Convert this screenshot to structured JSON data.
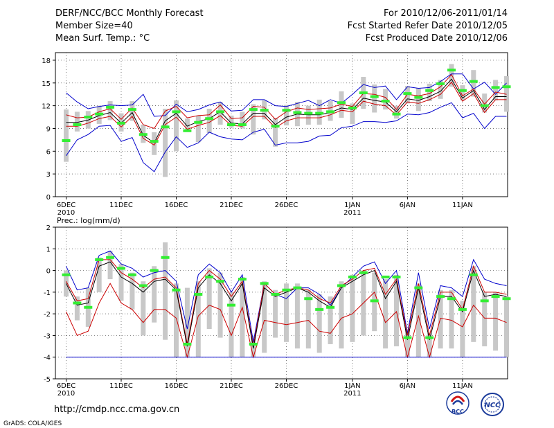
{
  "header": {
    "line1_left": "DERF/NCC/BCC Monthly Forecast",
    "line2_left": "Member Size=40",
    "line3_left": "Mean Surf. Temp.: °C",
    "line1_right": "For 2010/12/06-2011/01/14",
    "line2_right": "Fcst Started Refer Date 2010/12/05",
    "line3_right": "Fcst Produced Date 2010/12/06"
  },
  "footer": {
    "url": "http://cmdp.ncc.cma.gov.cn",
    "credit": "GrADS: COLA/IGES"
  },
  "logos": {
    "left": "BCC",
    "right": "NCC"
  },
  "colors": {
    "ensemble_bound": "#0000cc",
    "member_mean": "#cc0000",
    "mean": "#000000",
    "spread_bar": "#c8c8c8",
    "observed": "#33ee33",
    "grid": "#444444"
  },
  "chart_data": [
    {
      "type": "line",
      "title": "Mean Surf. Temp.: °C",
      "xlabel": "",
      "ylabel": "",
      "ylim": [
        0,
        19
      ],
      "yticks": [
        0,
        3,
        6,
        9,
        12,
        15,
        18
      ],
      "xticks": [
        {
          "day": 0,
          "label": "6DEC",
          "sub": "2010"
        },
        {
          "day": 5,
          "label": "11DEC",
          "sub": ""
        },
        {
          "day": 10,
          "label": "16DEC",
          "sub": ""
        },
        {
          "day": 15,
          "label": "21DEC",
          "sub": ""
        },
        {
          "day": 20,
          "label": "26DEC",
          "sub": ""
        },
        {
          "day": 26,
          "label": "1JAN",
          "sub": "2011"
        },
        {
          "day": 31,
          "label": "6JAN",
          "sub": ""
        },
        {
          "day": 36,
          "label": "11JAN",
          "sub": ""
        }
      ],
      "series": [
        {
          "name": "upper bound",
          "values": [
            13.7,
            12.5,
            11.6,
            11.9,
            12.1,
            12.0,
            12.1,
            13.5,
            10.6,
            10.7,
            12.2,
            11.2,
            11.5,
            12.1,
            12.5,
            11.3,
            11.4,
            12.8,
            12.8,
            12.0,
            11.9,
            12.3,
            12.7,
            12.0,
            12.8,
            12.3,
            13.5,
            14.8,
            14.4,
            14.6,
            12.8,
            14.5,
            14.3,
            14.4,
            15.2,
            16.2,
            16.2,
            14.2,
            15.1,
            13.5,
            15.0
          ]
        },
        {
          "name": "ensemble max",
          "values": [
            10.8,
            10.4,
            10.5,
            11.2,
            11.6,
            10.2,
            11.7,
            9.5,
            9.0,
            11.3,
            11.9,
            10.4,
            10.7,
            10.8,
            12.1,
            10.3,
            10.4,
            11.9,
            11.8,
            10.2,
            11.2,
            11.7,
            11.5,
            11.6,
            11.7,
            12.2,
            11.9,
            13.6,
            13.5,
            13.1,
            11.5,
            13.5,
            13.3,
            13.6,
            14.5,
            16.1,
            13.3,
            14.2,
            12.2,
            13.8,
            13.5
          ]
        },
        {
          "name": "ensemble mean",
          "values": [
            9.8,
            9.8,
            10.1,
            10.7,
            11.1,
            9.7,
            11.1,
            8.1,
            7.1,
            10.0,
            11.0,
            9.3,
            9.9,
            10.3,
            11.2,
            9.7,
            9.6,
            11.0,
            11.0,
            9.5,
            10.5,
            10.9,
            10.8,
            10.8,
            11.1,
            11.7,
            11.5,
            13.0,
            12.7,
            12.5,
            11.2,
            12.9,
            12.7,
            13.2,
            13.9,
            15.5,
            13.0,
            14.0,
            11.5,
            13.2,
            13.2
          ]
        },
        {
          "name": "ensemble min",
          "values": [
            9.3,
            9.3,
            9.7,
            10.3,
            10.6,
            9.2,
            10.6,
            7.7,
            6.8,
            9.5,
            10.5,
            8.9,
            9.4,
            9.8,
            10.7,
            9.4,
            9.3,
            10.6,
            10.6,
            9.1,
            10.0,
            10.4,
            10.4,
            10.4,
            10.8,
            11.4,
            11.2,
            12.6,
            12.2,
            12.0,
            10.8,
            12.5,
            12.3,
            12.8,
            13.5,
            15.1,
            12.6,
            13.6,
            11.1,
            12.8,
            12.8
          ]
        },
        {
          "name": "lower bound",
          "values": [
            5.4,
            7.5,
            8.2,
            9.3,
            9.4,
            7.3,
            7.8,
            4.5,
            3.3,
            5.9,
            7.9,
            6.5,
            7.1,
            8.5,
            7.9,
            7.6,
            7.5,
            8.5,
            8.9,
            6.8,
            7.1,
            7.1,
            7.3,
            8.0,
            8.1,
            9.1,
            9.3,
            9.9,
            9.9,
            9.8,
            10.0,
            10.9,
            10.8,
            11.1,
            11.8,
            12.4,
            10.4,
            11.0,
            9.0,
            10.6,
            10.6
          ]
        }
      ],
      "spread": [
        {
          "low": 4.6,
          "high": 11.5
        },
        {
          "low": 8.6,
          "high": 11.2
        },
        {
          "low": 9.0,
          "high": 11.3
        },
        {
          "low": 9.6,
          "high": 12.0
        },
        {
          "low": 10.1,
          "high": 12.6
        },
        {
          "low": 8.6,
          "high": 11.0
        },
        {
          "low": 10.0,
          "high": 12.6
        },
        {
          "low": 7.1,
          "high": 9.5
        },
        {
          "low": 5.5,
          "high": 8.5
        },
        {
          "low": 2.6,
          "high": 11.6
        },
        {
          "low": 6.0,
          "high": 12.7
        },
        {
          "low": 8.7,
          "high": 10.3
        },
        {
          "low": 7.2,
          "high": 10.7
        },
        {
          "low": 8.4,
          "high": 11.6
        },
        {
          "low": 9.5,
          "high": 12.5
        },
        {
          "low": 9.1,
          "high": 10.7
        },
        {
          "low": 9.0,
          "high": 11.2
        },
        {
          "low": 8.2,
          "high": 12.2
        },
        {
          "low": 10.2,
          "high": 12.7
        },
        {
          "low": 6.6,
          "high": 10.4
        },
        {
          "low": 9.4,
          "high": 12.1
        },
        {
          "low": 9.3,
          "high": 12.5
        },
        {
          "low": 9.5,
          "high": 12.0
        },
        {
          "low": 9.5,
          "high": 12.8
        },
        {
          "low": 10.0,
          "high": 12.6
        },
        {
          "low": 10.4,
          "high": 13.9
        },
        {
          "low": 9.6,
          "high": 12.3
        },
        {
          "low": 11.6,
          "high": 15.8
        },
        {
          "low": 11.1,
          "high": 14.8
        },
        {
          "low": 11.5,
          "high": 14.2
        },
        {
          "low": 10.3,
          "high": 12.0
        },
        {
          "low": 12.3,
          "high": 14.6
        },
        {
          "low": 11.3,
          "high": 14.3
        },
        {
          "low": 12.6,
          "high": 14.9
        },
        {
          "low": 12.9,
          "high": 15.4
        },
        {
          "low": 14.5,
          "high": 17.5
        },
        {
          "low": 12.7,
          "high": 14.7
        },
        {
          "low": 13.2,
          "high": 16.7
        },
        {
          "low": 11.1,
          "high": 13.6
        },
        {
          "low": 12.7,
          "high": 15.4
        },
        {
          "low": 11.2,
          "high": 15.9
        }
      ],
      "observed": [
        7.4,
        9.5,
        10.5,
        10.9,
        11.8,
        9.7,
        11.5,
        8.2,
        7.3,
        9.2,
        11.2,
        8.7,
        9.8,
        10.3,
        11.2,
        9.5,
        9.5,
        11.5,
        11.4,
        9.3,
        11.4,
        11.1,
        11.0,
        11.0,
        11.2,
        12.4,
        11.7,
        13.7,
        13.2,
        12.6,
        10.9,
        13.6,
        13.1,
        14.0,
        14.9,
        16.7,
        14.0,
        15.2,
        12.0,
        14.4,
        14.5
      ]
    },
    {
      "type": "line",
      "title": "Prec.: log(mm/d)",
      "xlabel": "",
      "ylabel": "",
      "ylim": [
        -5,
        2
      ],
      "yticks": [
        -5,
        -4,
        -3,
        -2,
        -1,
        0,
        1,
        2
      ],
      "xticks": [
        {
          "day": 0,
          "label": "6DEC",
          "sub": "2010"
        },
        {
          "day": 5,
          "label": "11DEC",
          "sub": ""
        },
        {
          "day": 10,
          "label": "16DEC",
          "sub": ""
        },
        {
          "day": 15,
          "label": "21DEC",
          "sub": ""
        },
        {
          "day": 20,
          "label": "26DEC",
          "sub": ""
        },
        {
          "day": 26,
          "label": "1JAN",
          "sub": "2011"
        },
        {
          "day": 31,
          "label": "6JAN",
          "sub": ""
        },
        {
          "day": 36,
          "label": "11JAN",
          "sub": ""
        }
      ],
      "series": [
        {
          "name": "upper bound",
          "values": [
            0.2,
            -0.9,
            -0.8,
            0.7,
            0.9,
            0.3,
            0.1,
            -0.3,
            -0.1,
            0.0,
            -0.5,
            -2.7,
            -0.2,
            0.3,
            -0.1,
            -1.0,
            -0.2,
            -3.3,
            -0.6,
            -1.1,
            -1.3,
            -0.8,
            -0.8,
            -1.1,
            -1.6,
            -0.8,
            -0.3,
            0.2,
            0.4,
            -0.6,
            0.0,
            -2.9,
            -0.1,
            -2.7,
            -0.7,
            -0.8,
            -1.2,
            0.5,
            -0.4,
            -0.6,
            -0.7
          ]
        },
        {
          "name": "ensemble max",
          "values": [
            -0.5,
            -1.4,
            -1.3,
            0.5,
            0.5,
            -0.1,
            -0.4,
            -0.8,
            -0.4,
            -0.3,
            -0.8,
            -3.4,
            -0.6,
            0.0,
            -0.4,
            -1.2,
            -0.5,
            -3.5,
            -0.6,
            -1.1,
            -0.9,
            -0.8,
            -0.9,
            -1.3,
            -1.5,
            -0.7,
            -0.4,
            0.0,
            0.1,
            -1.1,
            -0.4,
            -3.0,
            -0.6,
            -3.0,
            -1.0,
            -1.0,
            -1.8,
            0.2,
            -1.0,
            -1.0,
            -1.1
          ]
        },
        {
          "name": "ensemble mean",
          "values": [
            -0.6,
            -1.6,
            -1.5,
            0.2,
            0.4,
            -0.3,
            -0.6,
            -1.0,
            -0.5,
            -0.4,
            -0.9,
            -3.5,
            -0.8,
            -0.2,
            -0.6,
            -1.4,
            -0.6,
            -3.6,
            -0.8,
            -1.2,
            -1.0,
            -0.8,
            -1.0,
            -1.4,
            -1.7,
            -0.8,
            -0.5,
            -0.2,
            0.0,
            -1.3,
            -0.5,
            -3.2,
            -0.8,
            -3.2,
            -1.2,
            -1.2,
            -1.9,
            0.0,
            -1.2,
            -1.1,
            -1.2
          ]
        },
        {
          "name": "ensemble min",
          "values": [
            -1.9,
            -3.0,
            -2.8,
            -1.5,
            -0.6,
            -1.5,
            -1.8,
            -2.4,
            -1.8,
            -1.8,
            -2.2,
            -4.0,
            -2.1,
            -1.6,
            -1.8,
            -3.0,
            -1.7,
            -4.0,
            -2.3,
            -2.4,
            -2.5,
            -2.4,
            -2.3,
            -2.8,
            -2.9,
            -2.2,
            -2.0,
            -1.5,
            -1.0,
            -2.4,
            -1.9,
            -4.0,
            -2.1,
            -4.0,
            -2.2,
            -2.3,
            -2.6,
            -1.6,
            -2.2,
            -2.2,
            -2.4
          ]
        },
        {
          "name": "lower bound",
          "values": [
            -4,
            -4,
            -4,
            -4,
            -4,
            -4,
            -4,
            -4,
            -4,
            -4,
            -4,
            -4,
            -4,
            -4,
            -4,
            -4,
            -4,
            -4,
            -4,
            -4,
            -4,
            -4,
            -4,
            -4,
            -4,
            -4,
            -4,
            -4,
            -4,
            -4,
            -4,
            -4,
            -4,
            -4,
            -4,
            -4,
            -4,
            -4,
            -4,
            -4,
            -4
          ]
        }
      ],
      "spread": [
        {
          "low": -1.2,
          "high": 0.0
        },
        {
          "low": -2.3,
          "high": -1.2
        },
        {
          "low": -2.6,
          "high": -0.8
        },
        {
          "low": -1.0,
          "high": 0.6
        },
        {
          "low": -0.4,
          "high": 0.9
        },
        {
          "low": -1.4,
          "high": 0.3
        },
        {
          "low": -1.8,
          "high": -0.1
        },
        {
          "low": -3.0,
          "high": -0.5
        },
        {
          "low": -2.4,
          "high": 0.2
        },
        {
          "low": -3.2,
          "high": 1.3
        },
        {
          "low": -4.0,
          "high": -0.6
        },
        {
          "low": -4.0,
          "high": -0.8
        },
        {
          "low": -4.0,
          "high": -0.5
        },
        {
          "low": -2.7,
          "high": 0.1
        },
        {
          "low": -3.1,
          "high": -0.1
        },
        {
          "low": -4.0,
          "high": -1.0
        },
        {
          "low": -4.0,
          "high": -0.3
        },
        {
          "low": -4.0,
          "high": -3.0
        },
        {
          "low": -3.8,
          "high": -0.5
        },
        {
          "low": -3.1,
          "high": -0.9
        },
        {
          "low": -3.3,
          "high": -0.6
        },
        {
          "low": -3.6,
          "high": -0.6
        },
        {
          "low": -3.6,
          "high": -0.9
        },
        {
          "low": -3.8,
          "high": -1.1
        },
        {
          "low": -3.4,
          "high": -1.2
        },
        {
          "low": -3.6,
          "high": -0.5
        },
        {
          "low": -3.3,
          "high": -0.2
        },
        {
          "low": -3.0,
          "high": 0.0
        },
        {
          "low": -2.8,
          "high": -0.1
        },
        {
          "low": -3.6,
          "high": -0.4
        },
        {
          "low": -3.5,
          "high": -0.2
        },
        {
          "low": -4.0,
          "high": -2.7
        },
        {
          "low": -4.0,
          "high": -0.6
        },
        {
          "low": -4.0,
          "high": -2.9
        },
        {
          "low": -3.6,
          "high": -0.9
        },
        {
          "low": -3.6,
          "high": -0.9
        },
        {
          "low": -4.0,
          "high": -1.4
        },
        {
          "low": -3.3,
          "high": 0.2
        },
        {
          "low": -3.5,
          "high": -1.0
        },
        {
          "low": -3.7,
          "high": -1.0
        },
        {
          "low": -4.0,
          "high": -1.2
        }
      ],
      "observed": [
        -0.2,
        -1.5,
        -1.7,
        0.5,
        0.6,
        0.1,
        -0.2,
        -0.7,
        0.0,
        0.6,
        -0.9,
        -3.4,
        -1.1,
        -0.3,
        -0.5,
        -1.6,
        -0.4,
        -3.4,
        -0.6,
        -1.1,
        -0.9,
        -0.8,
        -1.3,
        -1.8,
        -1.7,
        -0.7,
        -0.3,
        -0.1,
        -1.4,
        -0.3,
        -0.3,
        -3.1,
        -0.8,
        -3.1,
        -1.2,
        -1.3,
        -1.8,
        -0.2,
        -1.4,
        -1.2,
        -1.3
      ]
    }
  ]
}
